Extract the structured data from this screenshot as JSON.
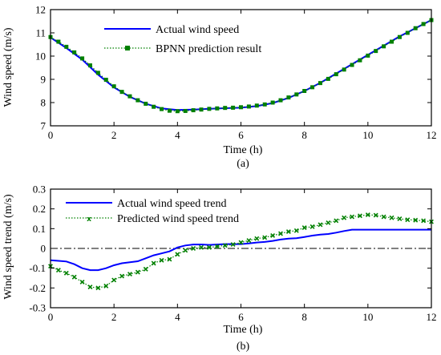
{
  "chart_data": [
    {
      "type": "line",
      "title": "",
      "caption": "(a)",
      "xlabel": "Time (h)",
      "ylabel": "Wind speed (m/s)",
      "xlim": [
        0,
        12
      ],
      "ylim": [
        7,
        12
      ],
      "xticks": [
        "0",
        "2",
        "4",
        "6",
        "8",
        "10",
        "12"
      ],
      "yticks": [
        "7",
        "8",
        "9",
        "10",
        "11",
        "12"
      ],
      "grid": false,
      "legend_position": "top-left",
      "series": [
        {
          "name": "Actual wind speed",
          "color": "#0000ff",
          "style": "solid",
          "x": [
            0,
            0.5,
            1,
            1.5,
            2,
            2.5,
            3,
            3.5,
            4,
            4.5,
            5,
            5.5,
            6,
            6.5,
            7,
            7.5,
            8,
            8.5,
            9,
            9.5,
            10,
            10.5,
            11,
            11.5,
            12
          ],
          "y": [
            10.8,
            10.35,
            9.85,
            9.2,
            8.65,
            8.25,
            7.95,
            7.75,
            7.68,
            7.7,
            7.73,
            7.76,
            7.78,
            7.85,
            7.98,
            8.2,
            8.5,
            8.85,
            9.25,
            9.65,
            10.05,
            10.45,
            10.85,
            11.2,
            11.55
          ]
        },
        {
          "name": "BPNN prediction result",
          "color": "#008000",
          "style": "dotted-square",
          "x": [
            0,
            0.25,
            0.5,
            0.75,
            1,
            1.25,
            1.5,
            1.75,
            2,
            2.25,
            2.5,
            2.75,
            3,
            3.25,
            3.5,
            3.75,
            4,
            4.25,
            4.5,
            4.75,
            5,
            5.25,
            5.5,
            5.75,
            6,
            6.25,
            6.5,
            6.75,
            7,
            7.25,
            7.5,
            7.75,
            8,
            8.25,
            8.5,
            8.75,
            9,
            9.25,
            9.5,
            9.75,
            10,
            10.25,
            10.5,
            10.75,
            11,
            11.25,
            11.5,
            11.75,
            12
          ],
          "y": [
            10.82,
            10.62,
            10.4,
            10.16,
            9.9,
            9.6,
            9.28,
            8.98,
            8.7,
            8.46,
            8.27,
            8.1,
            7.95,
            7.82,
            7.72,
            7.65,
            7.63,
            7.64,
            7.67,
            7.7,
            7.73,
            7.75,
            7.77,
            7.78,
            7.8,
            7.83,
            7.87,
            7.92,
            8.0,
            8.1,
            8.22,
            8.35,
            8.5,
            8.66,
            8.84,
            9.02,
            9.22,
            9.42,
            9.62,
            9.82,
            10.02,
            10.22,
            10.42,
            10.62,
            10.82,
            11.0,
            11.2,
            11.38,
            11.55
          ]
        }
      ]
    },
    {
      "type": "line",
      "title": "",
      "caption": "(b)",
      "xlabel": "Time (h)",
      "ylabel": "Wind speed trend (m/s)",
      "xlim": [
        0,
        12
      ],
      "ylim": [
        -0.3,
        0.3
      ],
      "xticks": [
        "0",
        "2",
        "4",
        "6",
        "8",
        "10",
        "12"
      ],
      "yticks": [
        "-0.3",
        "-0.2",
        "-0.1",
        "0",
        "0.1",
        "0.2",
        "0.3"
      ],
      "grid": false,
      "zero_line": true,
      "legend_position": "top-left",
      "series": [
        {
          "name": "Actual wind speed trend",
          "color": "#0000ff",
          "style": "solid",
          "x": [
            0,
            0.25,
            0.5,
            0.75,
            1,
            1.25,
            1.5,
            1.75,
            2,
            2.25,
            2.5,
            2.75,
            3,
            3.25,
            3.5,
            3.75,
            4,
            4.25,
            4.5,
            4.75,
            5,
            5.25,
            5.5,
            5.75,
            6,
            6.25,
            6.5,
            6.75,
            7,
            7.25,
            7.5,
            7.75,
            8,
            8.25,
            8.5,
            8.75,
            9,
            9.25,
            9.5,
            9.75,
            10,
            10.25,
            10.5,
            10.75,
            11,
            11.25,
            11.5,
            11.75,
            12
          ],
          "y": [
            -0.06,
            -0.063,
            -0.066,
            -0.08,
            -0.1,
            -0.11,
            -0.11,
            -0.1,
            -0.085,
            -0.075,
            -0.07,
            -0.065,
            -0.05,
            -0.035,
            -0.025,
            -0.015,
            0.005,
            0.015,
            0.02,
            0.02,
            0.018,
            0.02,
            0.022,
            0.022,
            0.022,
            0.025,
            0.03,
            0.033,
            0.038,
            0.045,
            0.05,
            0.052,
            0.058,
            0.065,
            0.07,
            0.073,
            0.08,
            0.088,
            0.095,
            0.095,
            0.095,
            0.095,
            0.095,
            0.095,
            0.095,
            0.095,
            0.095,
            0.095,
            0.095
          ]
        },
        {
          "name": "Predicted wind speed trend",
          "color": "#008000",
          "style": "dotted-x",
          "x": [
            0,
            0.25,
            0.5,
            0.75,
            1,
            1.25,
            1.5,
            1.75,
            2,
            2.25,
            2.5,
            2.75,
            3,
            3.25,
            3.5,
            3.75,
            4,
            4.25,
            4.5,
            4.75,
            5,
            5.25,
            5.5,
            5.75,
            6,
            6.25,
            6.5,
            6.75,
            7,
            7.25,
            7.5,
            7.75,
            8,
            8.25,
            8.5,
            8.75,
            9,
            9.25,
            9.5,
            9.75,
            10,
            10.25,
            10.5,
            10.75,
            11,
            11.25,
            11.5,
            11.75,
            12
          ],
          "y": [
            -0.09,
            -0.11,
            -0.125,
            -0.145,
            -0.17,
            -0.195,
            -0.2,
            -0.19,
            -0.16,
            -0.14,
            -0.13,
            -0.12,
            -0.105,
            -0.075,
            -0.06,
            -0.055,
            -0.03,
            -0.01,
            0.0,
            0.005,
            0.005,
            0.01,
            0.015,
            0.02,
            0.03,
            0.04,
            0.05,
            0.055,
            0.065,
            0.075,
            0.085,
            0.09,
            0.105,
            0.11,
            0.12,
            0.13,
            0.14,
            0.155,
            0.16,
            0.165,
            0.17,
            0.168,
            0.16,
            0.155,
            0.15,
            0.145,
            0.143,
            0.14,
            0.135
          ]
        }
      ]
    }
  ]
}
